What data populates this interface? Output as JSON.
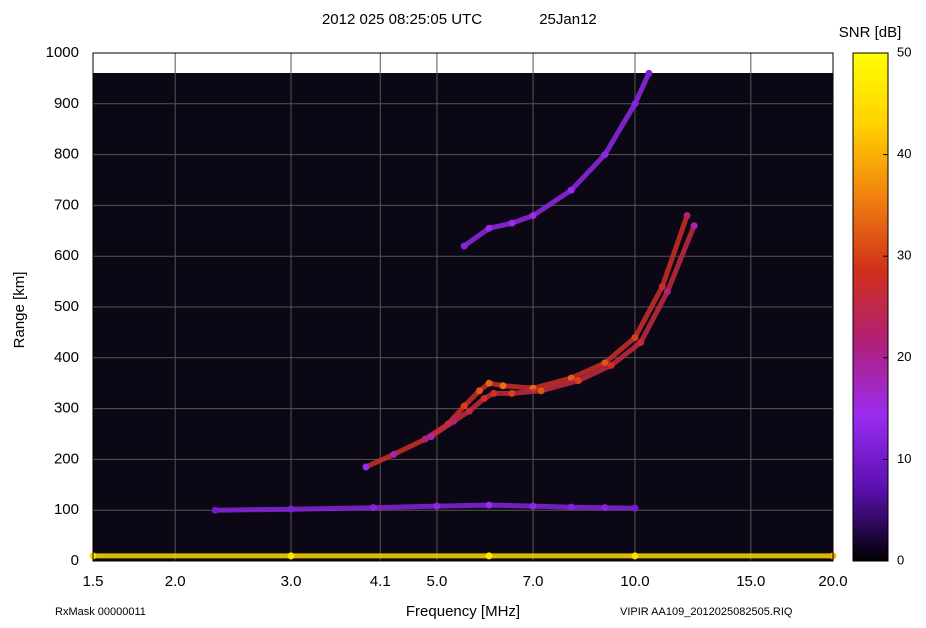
{
  "chart_data": {
    "type": "ionogram",
    "title": "2012 025 08:25:05 UTC",
    "date_label": "25Jan12",
    "x_label": "Frequency [MHz]",
    "y_label": "Range [km]",
    "colorbar_label": "SNR [dB]",
    "left_footer": "RxMask 00000011",
    "right_footer": "VIPIR  AA109_2012025082505.RIQ",
    "xscale": "log",
    "xlim": [
      1.5,
      20
    ],
    "xticks": [
      1.5,
      {
        "value": 2,
        "label": "2.0"
      },
      {
        "value": 3,
        "label": "3.0"
      },
      4.1,
      {
        "value": 5,
        "label": "5.0"
      },
      {
        "value": 7,
        "label": "7.0"
      },
      {
        "value": 10,
        "label": "10.0"
      },
      {
        "value": 15,
        "label": "15.0"
      },
      {
        "value": 20,
        "label": "20.0"
      }
    ],
    "ylim": [
      0,
      1000
    ],
    "yticks": [
      0,
      100,
      200,
      300,
      400,
      500,
      600,
      700,
      800,
      900,
      1000
    ],
    "clim": [
      0,
      50
    ],
    "cticks": [
      0,
      10,
      20,
      30,
      40,
      50
    ],
    "colormap": [
      "#000000",
      "#5a10b0",
      "#9a2cf0",
      "#b0207a",
      "#d0301a",
      "#f08010",
      "#ffd000",
      "#ffff00"
    ],
    "grid": true,
    "series": [
      {
        "x": [
          1.5,
          3,
          6,
          10,
          20
        ],
        "y": [
          10,
          10,
          10,
          10,
          10
        ],
        "snr": [
          45,
          46,
          46,
          45,
          40
        ]
      },
      {
        "x": [
          2.3,
          3,
          4,
          5,
          6,
          7,
          8,
          9,
          10
        ],
        "y": [
          100,
          102,
          105,
          108,
          110,
          108,
          106,
          105,
          104
        ],
        "snr": [
          10,
          11,
          12,
          13,
          14,
          13,
          12,
          12,
          10
        ]
      },
      {
        "x": [
          3.9,
          4.3,
          4.8,
          5.2,
          5.5,
          5.8,
          6.0,
          6.3,
          7,
          8,
          9,
          10,
          11,
          12
        ],
        "y": [
          185,
          210,
          240,
          270,
          305,
          335,
          350,
          345,
          340,
          360,
          390,
          440,
          540,
          680
        ],
        "snr": [
          14,
          18,
          22,
          26,
          30,
          32,
          33,
          34,
          34,
          33,
          32,
          30,
          26,
          22
        ]
      },
      {
        "x": [
          4.9,
          5.3,
          5.6,
          5.9,
          6.1,
          6.5,
          7.2,
          8.2,
          9.2,
          10.2,
          11.2,
          12.3
        ],
        "y": [
          245,
          275,
          295,
          320,
          330,
          330,
          335,
          355,
          385,
          430,
          530,
          660
        ],
        "snr": [
          18,
          22,
          26,
          28,
          28,
          30,
          32,
          30,
          28,
          26,
          22,
          18
        ]
      },
      {
        "x": [
          5.5,
          6,
          6.5,
          7,
          8,
          9,
          10,
          10.5
        ],
        "y": [
          620,
          655,
          665,
          680,
          730,
          800,
          900,
          960
        ],
        "snr": [
          12,
          14,
          15,
          15,
          14,
          13,
          12,
          11
        ]
      }
    ]
  }
}
